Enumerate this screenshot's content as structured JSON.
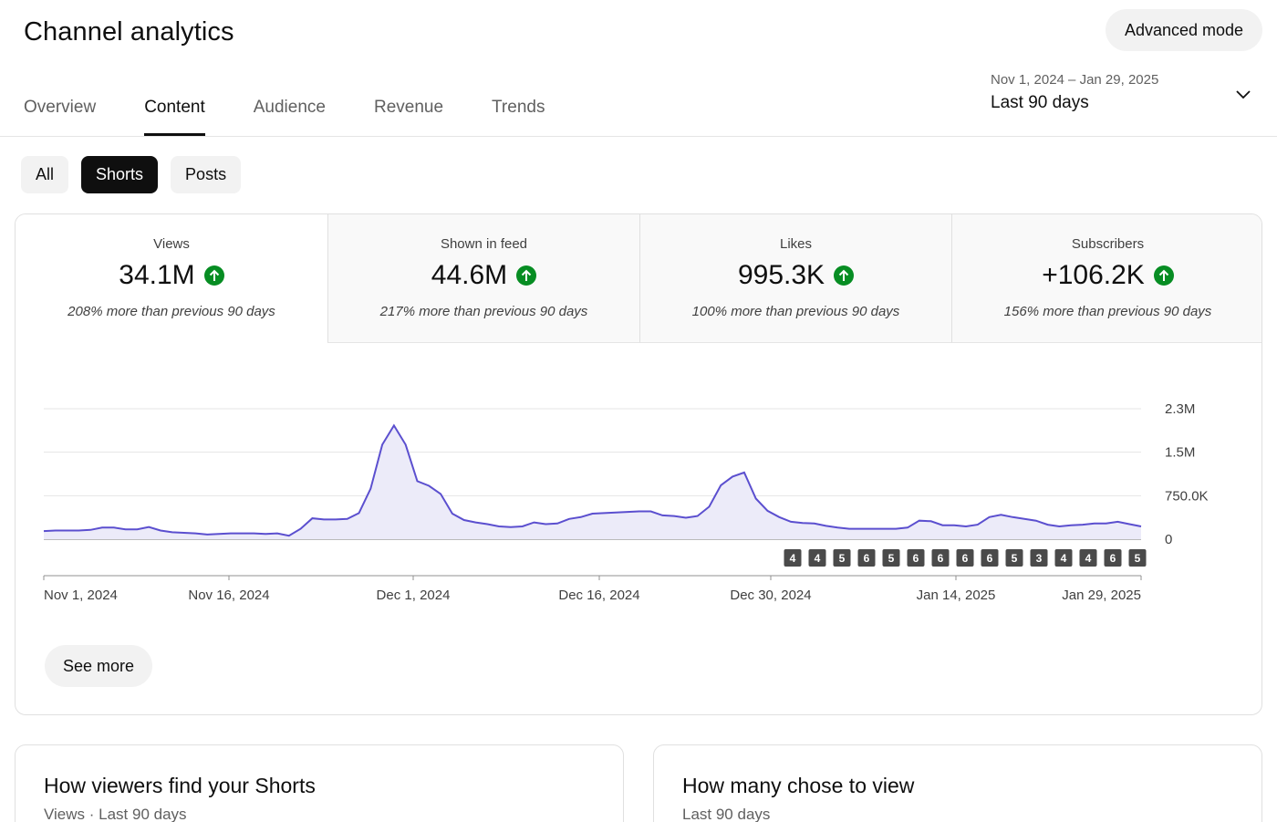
{
  "header": {
    "title": "Channel analytics",
    "advanced_mode_label": "Advanced mode"
  },
  "tabs": [
    {
      "label": "Overview",
      "active": false
    },
    {
      "label": "Content",
      "active": true
    },
    {
      "label": "Audience",
      "active": false
    },
    {
      "label": "Revenue",
      "active": false
    },
    {
      "label": "Trends",
      "active": false
    }
  ],
  "date_picker": {
    "range": "Nov 1, 2024 – Jan 29, 2025",
    "preset": "Last 90 days",
    "icon": "chevron-down-icon"
  },
  "content_filters": [
    {
      "label": "All",
      "active": false
    },
    {
      "label": "Shorts",
      "active": true
    },
    {
      "label": "Posts",
      "active": false
    }
  ],
  "metrics": [
    {
      "label": "Views",
      "value": "34.1M",
      "delta": "208% more than previous 90 days",
      "trend_icon": "arrow-up-circle-icon",
      "selected": true
    },
    {
      "label": "Shown in feed",
      "value": "44.6M",
      "delta": "217% more than previous 90 days",
      "trend_icon": "arrow-up-circle-icon",
      "selected": false
    },
    {
      "label": "Likes",
      "value": "995.3K",
      "delta": "100% more than previous 90 days",
      "trend_icon": "arrow-up-circle-icon",
      "selected": false
    },
    {
      "label": "Subscribers",
      "value": "+106.2K",
      "delta": "156% more than previous 90 days",
      "trend_icon": "arrow-up-circle-icon",
      "selected": false
    }
  ],
  "colors": {
    "line": "#5b4fcf",
    "area": "#ecebf9",
    "up_badge": "#078d23",
    "badge_bg": "#4a4a4a"
  },
  "chart_data": {
    "type": "area",
    "x_tick_labels": [
      "Nov 1, 2024",
      "Nov 16, 2024",
      "Dec 1, 2024",
      "Dec 16, 2024",
      "Dec 30, 2024",
      "Jan 14, 2025",
      "Jan 29, 2025"
    ],
    "y_tick_labels": [
      "0",
      "750.0K",
      "1.5M",
      "2.3M"
    ],
    "y_tick_values": [
      0,
      750000,
      1500000,
      2250000
    ],
    "ylim": [
      0,
      2250000
    ],
    "y_axis_side": "right",
    "grid": true,
    "series": [
      {
        "values": [
          140000,
          150000,
          150000,
          150000,
          160000,
          200000,
          200000,
          170000,
          170000,
          210000,
          150000,
          120000,
          110000,
          100000,
          80000,
          90000,
          100000,
          100000,
          100000,
          90000,
          100000,
          60000,
          180000,
          360000,
          340000,
          340000,
          350000,
          450000,
          870000,
          1630000,
          1960000,
          1630000,
          1000000,
          920000,
          780000,
          440000,
          330000,
          290000,
          260000,
          220000,
          210000,
          220000,
          290000,
          260000,
          270000,
          350000,
          380000,
          440000,
          450000,
          460000,
          470000,
          480000,
          480000,
          410000,
          400000,
          370000,
          400000,
          560000,
          930000,
          1080000,
          1150000,
          700000,
          490000,
          380000,
          300000,
          280000,
          270000,
          230000,
          200000,
          180000,
          180000,
          180000,
          180000,
          180000,
          200000,
          320000,
          310000,
          240000,
          240000,
          220000,
          250000,
          380000,
          420000,
          380000,
          350000,
          320000,
          250000,
          220000,
          240000,
          250000,
          270000,
          270000,
          300000,
          260000,
          220000
        ]
      }
    ],
    "publish_badges": [
      "4",
      "4",
      "5",
      "6",
      "5",
      "6",
      "6",
      "6",
      "6",
      "5",
      "3",
      "4",
      "4",
      "6",
      "5"
    ]
  },
  "see_more_label": "See more",
  "cards": [
    {
      "title": "How viewers find your Shorts",
      "subtitle": "Views · Last 90 days"
    },
    {
      "title": "How many chose to view",
      "subtitle": "Last 90 days"
    }
  ]
}
